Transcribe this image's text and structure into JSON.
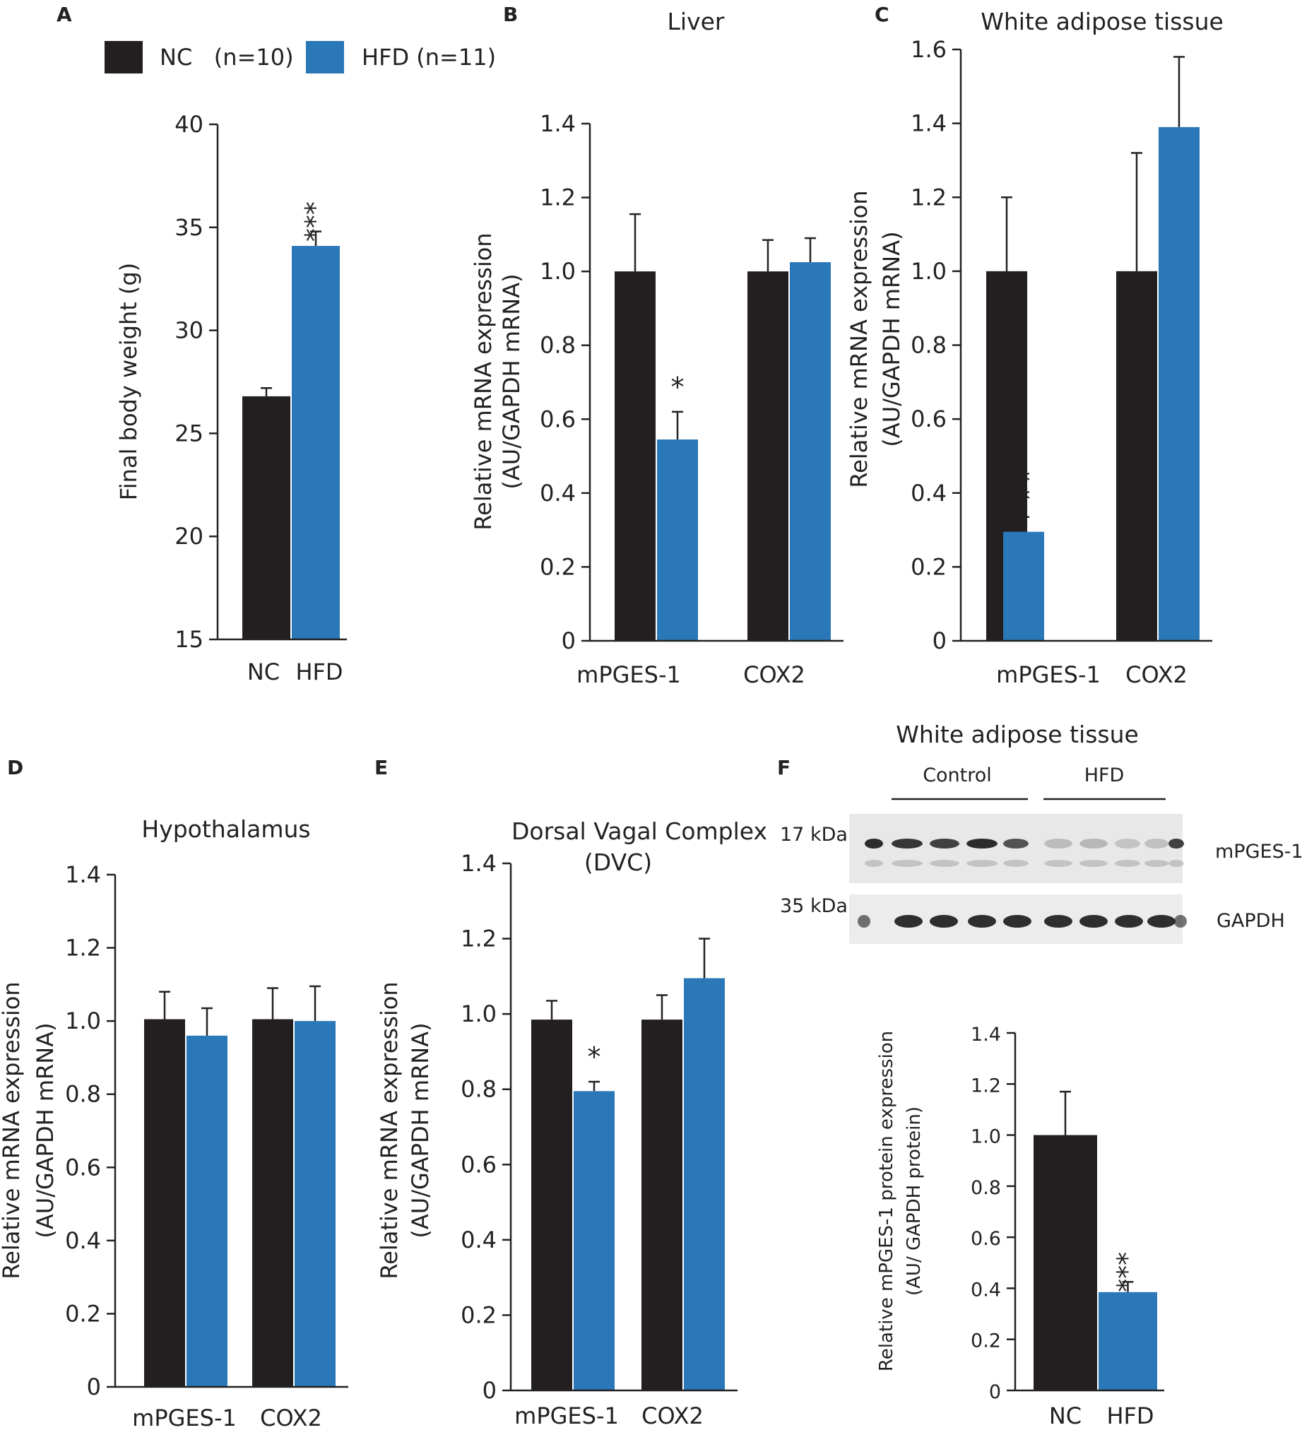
{
  "colors": {
    "nc": "#231f20",
    "hfd": "#2a78b8",
    "axis": "#222222"
  },
  "legend": {
    "nc_label": "NC   (n=10)",
    "hfd_label": "HFD (n=11)"
  },
  "chart_data": [
    {
      "panel": "A",
      "type": "bar",
      "title": "",
      "categories": [
        "NC",
        "HFD"
      ],
      "series": [
        {
          "name": "Final body weight",
          "values": [
            26.8,
            34.1
          ],
          "errors": [
            0.4,
            0.7
          ]
        }
      ],
      "ylabel": "Final body weight (g)",
      "ylim": [
        15,
        40
      ],
      "yticks": [
        "15",
        "20",
        "25",
        "30",
        "35",
        "40"
      ],
      "significance": [
        {
          "bar": 1,
          "label": "***"
        }
      ]
    },
    {
      "panel": "B",
      "type": "bar",
      "title": "Liver",
      "categories": [
        "mPGES-1",
        "COX2"
      ],
      "series": [
        {
          "name": "NC",
          "values": [
            1.0,
            1.0
          ],
          "errors": [
            0.155,
            0.085
          ]
        },
        {
          "name": "HFD",
          "values": [
            0.545,
            1.025
          ],
          "errors": [
            0.075,
            0.065
          ]
        }
      ],
      "ylabel": "Relative mRNA expression",
      "ylabel2": "(AU/GAPDH mRNA)",
      "ylim": [
        0,
        1.4
      ],
      "yticks": [
        "0",
        "0.2",
        "0.4",
        "0.6",
        "0.8",
        "1.0",
        "1.2",
        "1.4"
      ],
      "significance": [
        {
          "group": 0,
          "series": 1,
          "label": "*"
        }
      ]
    },
    {
      "panel": "C",
      "type": "bar",
      "title": "White adipose tissue",
      "categories": [
        "mPGES-1",
        "COX2"
      ],
      "series": [
        {
          "name": "NC",
          "values": [
            1.0,
            1.0
          ],
          "errors": [
            0.2,
            0.32
          ]
        },
        {
          "name": "HFD",
          "values": [
            0.295,
            1.39
          ],
          "errors": [
            0.04,
            0.19
          ]
        }
      ],
      "ylabel": "Relative mRNA expression",
      "ylabel2": "(AU/GAPDH mRNA)",
      "ylim": [
        0,
        1.6
      ],
      "yticks": [
        "0",
        "0.2",
        "0.4",
        "0.6",
        "0.8",
        "1.0",
        "1.2",
        "1.4",
        "1.6"
      ],
      "significance": [
        {
          "group": 0,
          "series": 1,
          "label": "**"
        }
      ]
    },
    {
      "panel": "D",
      "type": "bar",
      "title": "Hypothalamus",
      "categories": [
        "mPGES-1",
        "COX2"
      ],
      "series": [
        {
          "name": "NC",
          "values": [
            1.005,
            1.005
          ],
          "errors": [
            0.075,
            0.085
          ]
        },
        {
          "name": "HFD",
          "values": [
            0.96,
            1.0
          ],
          "errors": [
            0.075,
            0.095
          ]
        }
      ],
      "ylabel": "Relative mRNA expression",
      "ylabel2": "(AU/GAPDH mRNA)",
      "ylim": [
        0,
        1.4
      ],
      "yticks": [
        "0",
        "0.2",
        "0.4",
        "0.6",
        "0.8",
        "1.0",
        "1.2",
        "1.4"
      ],
      "significance": []
    },
    {
      "panel": "E",
      "type": "bar",
      "title": "Dorsal Vagal Complex",
      "title2": "(DVC)",
      "categories": [
        "mPGES-1",
        "COX2"
      ],
      "series": [
        {
          "name": "NC",
          "values": [
            0.985,
            0.985
          ],
          "errors": [
            0.05,
            0.065
          ]
        },
        {
          "name": "HFD",
          "values": [
            0.795,
            1.095
          ],
          "errors": [
            0.025,
            0.105
          ]
        }
      ],
      "ylabel": "Relative mRNA expression",
      "ylabel2": "(AU/GAPDH mRNA)",
      "ylim": [
        0,
        1.4
      ],
      "yticks": [
        "0",
        "0.2",
        "0.4",
        "0.6",
        "0.8",
        "1.0",
        "1.2",
        "1.4"
      ],
      "significance": [
        {
          "group": 0,
          "series": 1,
          "label": "*"
        }
      ]
    },
    {
      "panel": "F",
      "type": "bar",
      "title": "",
      "categories": [
        "NC",
        "HFD"
      ],
      "series": [
        {
          "name": "mPGES-1 protein",
          "values": [
            1.0,
            0.385
          ],
          "errors": [
            0.17,
            0.04
          ]
        }
      ],
      "ylabel": "Relative mPGES-1 protein expression",
      "ylabel2": "(AU/ GAPDH protein)",
      "ylim": [
        0,
        1.4
      ],
      "yticks": [
        "0",
        "0.2",
        "0.4",
        "0.6",
        "0.8",
        "1.0",
        "1.2",
        "1.4"
      ],
      "significance": [
        {
          "bar": 1,
          "label": "***"
        }
      ]
    }
  ],
  "western_blot": {
    "title": "White adipose tissue",
    "groups": [
      "Control",
      "HFD"
    ],
    "rows": [
      {
        "marker": "17 kDa",
        "protein": "mPGES-1"
      },
      {
        "marker": "35 kDa",
        "protein": "GAPDH"
      }
    ]
  }
}
